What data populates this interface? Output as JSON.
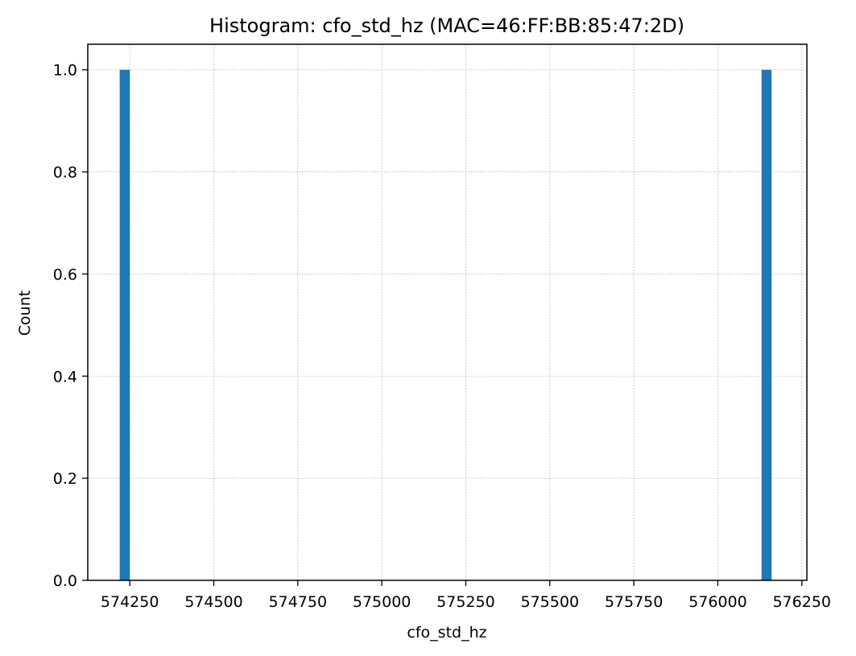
{
  "chart_data": {
    "type": "bar",
    "title": "Histogram: cfo_std_hz (MAC=46:FF:BB:85:47:2D)",
    "xlabel": "cfo_std_hz",
    "ylabel": "Count",
    "xlim": [
      574125,
      576265
    ],
    "ylim": [
      0,
      1.05
    ],
    "xticks": [
      574250,
      574500,
      574750,
      575000,
      575250,
      575500,
      575750,
      576000,
      576250
    ],
    "yticks": [
      "0.0",
      "0.2",
      "0.4",
      "0.6",
      "0.8",
      "1.0"
    ],
    "grid": true,
    "bars": [
      {
        "x0": 574220,
        "x1": 574250,
        "value": 1
      },
      {
        "x0": 576130,
        "x1": 576160,
        "value": 1
      }
    ],
    "colors": {
      "bar": "#1f77b4",
      "grid": "#b0b0b0",
      "axis": "#000000"
    }
  }
}
